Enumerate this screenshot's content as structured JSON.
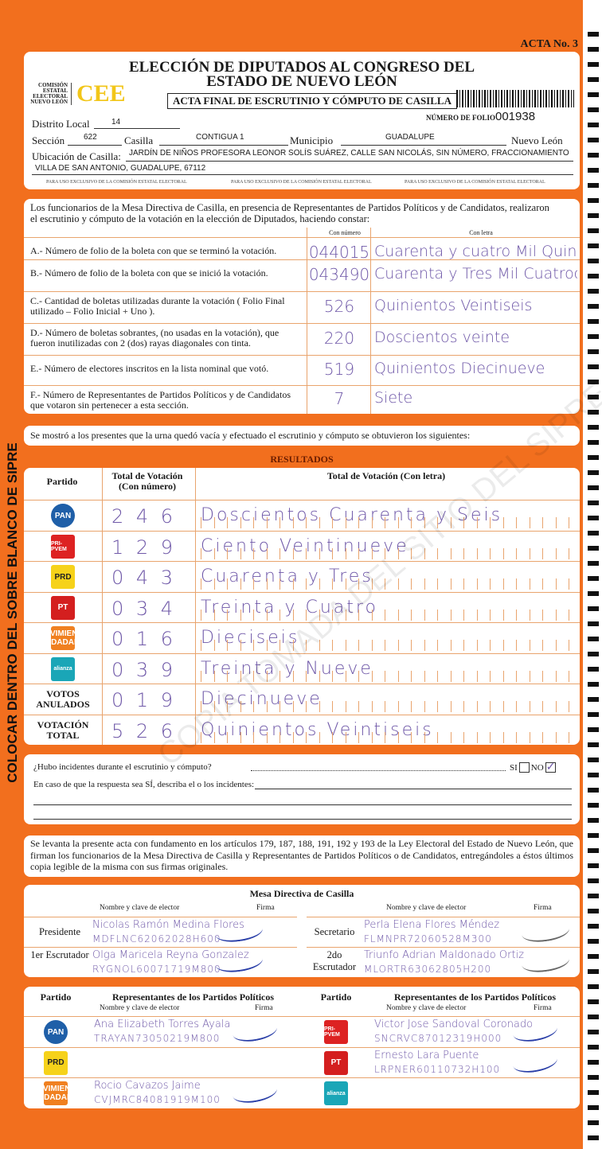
{
  "acta_no": "ACTA No. 3",
  "side_text": "COLOCAR DENTRO DEL SOBRE BLANCO DE SIPRE",
  "watermark": "COPIA TOMADA DEL SITIO DEL SIPRE",
  "header": {
    "title_1": "ELECCIÓN DE DIPUTADOS AL CONGRESO DEL",
    "title_2": "ESTADO DE NUEVO LEÓN",
    "subtitle": "ACTA FINAL DE ESCRUTINIO Y CÓMPUTO DE CASILLA",
    "org": "COMISIÓN ESTATAL ELECTORAL NUEVO LEÓN",
    "logo": "CEE",
    "folio_label": "NÚMERO DE FOLIO",
    "folio": "001938",
    "distrito_label": "Distrito Local",
    "distrito": "14",
    "seccion_label": "Sección",
    "seccion": "622",
    "casilla_label": "Casilla",
    "casilla": "CONTIGUA 1",
    "municipio_label": "Municipio",
    "municipio": "GUADALUPE",
    "estado": "Nuevo León",
    "ubicacion_label": "Ubicación de Casilla:",
    "ubicacion_1": "JARDÍN DE NIÑOS PROFESORA LEONOR SOLÍS SUÁREZ, CALLE SAN NICOLÁS, SIN NÚMERO, FRACCIONAMIENTO",
    "ubicacion_2": "VILLA DE SAN ANTONIO, GUADALUPE, 67112",
    "exclusivo": "PARA USO EXCLUSIVO DE LA COMISIÓN ESTATAL ELECTORAL"
  },
  "intro": {
    "text_1": "Los funcionarios de la Mesa Directiva de Casilla, en presencia de Representantes de Partidos Políticos  y de Candidatos, realizaron",
    "text_2": "el escrutinio y cómputo de la votación en la elección de Diputados, haciendo constar:",
    "col_num": "Con número",
    "col_letra": "Con letra",
    "items": [
      {
        "q": "A.- Número de folio de la boleta con que se terminó la votación.",
        "num": "044015",
        "letra": "Cuarenta y cuatro Mil Quince"
      },
      {
        "q": "B.- Número de folio de la boleta con que se inició la votación.",
        "num": "043490",
        "letra": "Cuarenta y Tres Mil Cuatrocientos Noventa"
      },
      {
        "q": "C.- Cantidad de boletas utilizadas durante la votación ( Folio Final utilizado – Folio Inicial + Uno ).",
        "num": "526",
        "letra": "Quinientos Veintiseis"
      },
      {
        "q": "D.- Número de boletas sobrantes, (no usadas en la votación), que fueron inutilizadas con 2 (dos) rayas diagonales con tinta.",
        "num": "220",
        "letra": "Doscientos veinte"
      },
      {
        "q": "E.- Número de electores inscritos en la lista nominal que votó.",
        "num": "519",
        "letra": "Quinientos Diecinueve"
      },
      {
        "q": "F.- Número de Representantes de Partidos Políticos y de Candidatos que votaron sin pertenecer a esta sección.",
        "num": "7",
        "letra": "Siete"
      }
    ]
  },
  "statement": "Se mostró a los presentes que la urna quedó vacía y efectuado el escrutinio y cómputo se obtuvieron los siguientes:",
  "results": {
    "title": "RESULTADOS",
    "col_partido": "Partido",
    "col_num": "Total de Votación (Con número)",
    "col_letra": "Total de Votación (Con letra)",
    "rows": [
      {
        "party": "PAN",
        "color": "#1f5fa8",
        "num": "2 4 6",
        "letra": "Doscientos Cuarenta y Seis"
      },
      {
        "party": "PRI-PVEM",
        "color": "#d22",
        "num": "1 2 9",
        "letra": "Ciento Veintinueve"
      },
      {
        "party": "PRD",
        "color": "#f6d21a",
        "num": "0 4 3",
        "letra": "Cuarenta y Tres"
      },
      {
        "party": "PT",
        "color": "#d41f1f",
        "num": "0 3 4",
        "letra": "Treinta y Cuatro"
      },
      {
        "party": "MOVIMIENTO CIUDADANO",
        "color": "#f08020",
        "num": "0 1 6",
        "letra": "Dieciseis"
      },
      {
        "party": "alianza",
        "color": "#1aa6b7",
        "num": "0 3 9",
        "letra": "Treinta y Nueve"
      },
      {
        "party": "VOTOS ANULADOS",
        "color": "",
        "num": "0 1 9",
        "letra": "Diecinueve"
      },
      {
        "party": "VOTACIÓN TOTAL",
        "color": "",
        "num": "5 2 6",
        "letra": "Quinientos Veintiseis"
      }
    ]
  },
  "incidents": {
    "question": "¿Hubo incidentes durante el escrutinio y cómputo?",
    "si": "SI",
    "no": "NO",
    "answer": "NO",
    "describe": "En caso de que la respuesta sea SÍ, describa el o los incidentes:"
  },
  "legal": "Se levanta la presente acta con fundamento en los artículos 179, 187, 188, 191, 192 y 193 de la Ley Electoral del Estado de Nuevo León, que firman los funcionarios de la Mesa Directiva de Casilla y Representantes de  Partidos Políticos o de Candidatos, entregándoles a éstos últimos copia legible de la misma con sus firmas originales.",
  "mesa": {
    "title": "Mesa Directiva de Casilla",
    "col_nombre": "Nombre y clave de elector",
    "col_firma": "Firma",
    "members": [
      {
        "role": "Presidente",
        "name": "Nicolas Ramón Medina Flores",
        "clave": "MDFLNC62062028H600"
      },
      {
        "role": "Secretario",
        "name": "Perla Elena Flores Méndez",
        "clave": "FLMNPR72060528M300"
      },
      {
        "role": "1er Escrutador",
        "name": "Olga Maricela Reyna Gonzalez",
        "clave": "RYGNOL60071719M800"
      },
      {
        "role": "2do Escrutador",
        "name": "Triunfo Adrian Maldonado Ortiz",
        "clave": "MLORTR63062805H200"
      }
    ]
  },
  "reps": {
    "col_partido": "Partido",
    "title": "Representantes de los Partidos Políticos",
    "col_nombre": "Nombre y clave de elector",
    "col_firma": "Firma",
    "rows": [
      {
        "party": "PAN",
        "color": "#1f5fa8",
        "name": "Ana Elizabeth Torres Ayala",
        "clave": "TRAYAN73050219M800"
      },
      {
        "party": "PRD",
        "color": "#f6d21a",
        "name": "",
        "clave": ""
      },
      {
        "party": "MOVIMIENTO CIUDADANO",
        "color": "#f08020",
        "name": "Rocio Cavazos Jaime",
        "clave": "CVJMRC84081919M100"
      },
      {
        "party": "PRI-PVEM",
        "color": "#d22",
        "name": "Victor Jose Sandoval Coronado",
        "clave": "SNCRVC87012319H000"
      },
      {
        "party": "PT",
        "color": "#d41f1f",
        "name": "Ernesto Lara Puente",
        "clave": "LRPNER60110732H100"
      },
      {
        "party": "alianza",
        "color": "#1aa6b7",
        "name": "",
        "clave": ""
      }
    ]
  }
}
